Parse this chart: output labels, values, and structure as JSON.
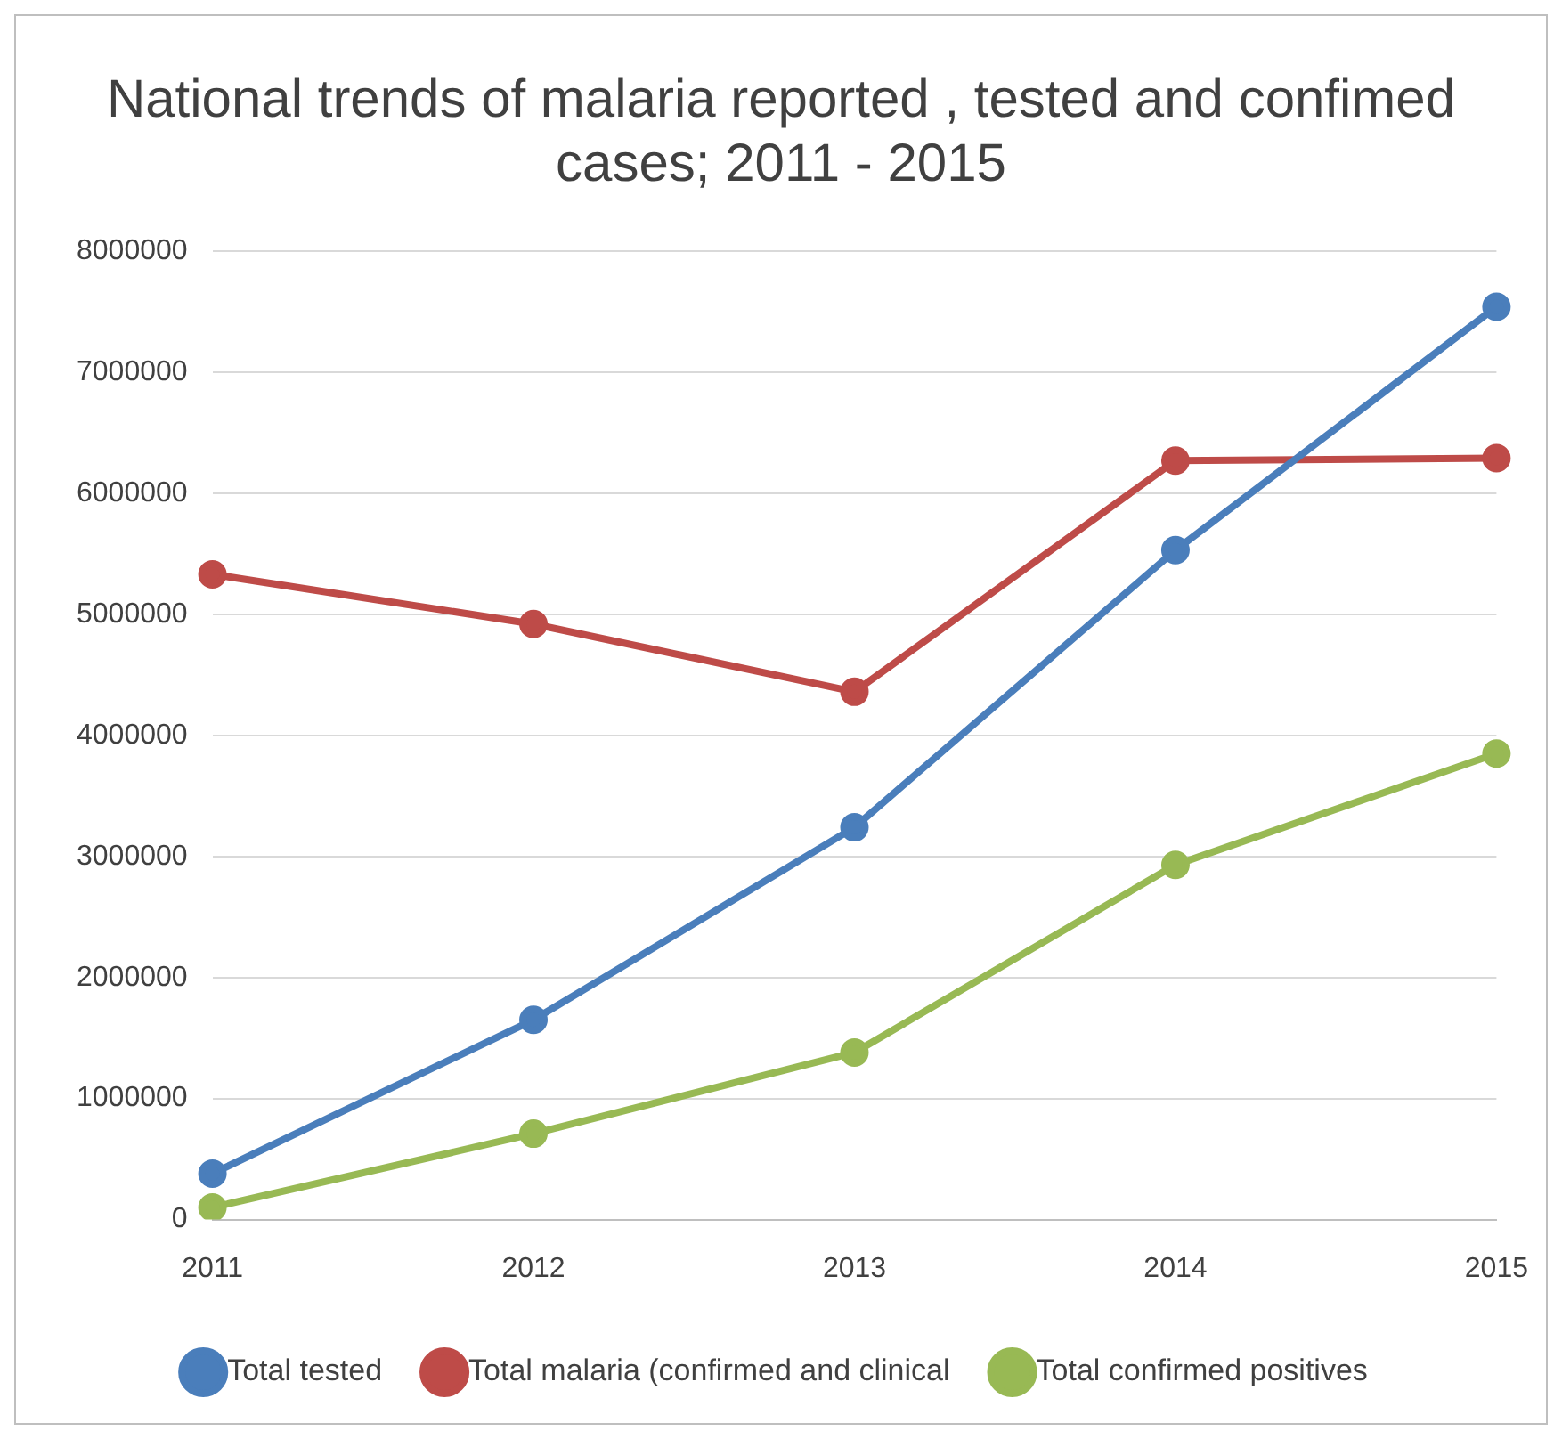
{
  "chart_data": {
    "type": "line",
    "title": [
      "National trends of malaria reported , tested and confimed",
      "cases; 2011 - 2015"
    ],
    "categories": [
      "2011",
      "2012",
      "2013",
      "2014",
      "2015"
    ],
    "series": [
      {
        "name": "Total tested",
        "color": "#4a7ebb",
        "values": [
          380000,
          1650000,
          3240000,
          5530000,
          7540000
        ]
      },
      {
        "name": "Total malaria (confirmed and clinical",
        "color": "#be4b48",
        "values": [
          5330000,
          4920000,
          4360000,
          6270000,
          6290000
        ]
      },
      {
        "name": "Total confirmed positives",
        "color": "#98b954",
        "values": [
          100000,
          710000,
          1380000,
          2930000,
          3850000
        ]
      }
    ],
    "ylim": [
      0,
      8000000
    ],
    "yticks": [
      0,
      1000000,
      2000000,
      3000000,
      4000000,
      5000000,
      6000000,
      7000000,
      8000000
    ],
    "grid": "y",
    "legend": "bottom",
    "marker": "circle",
    "line_style": "solid"
  }
}
